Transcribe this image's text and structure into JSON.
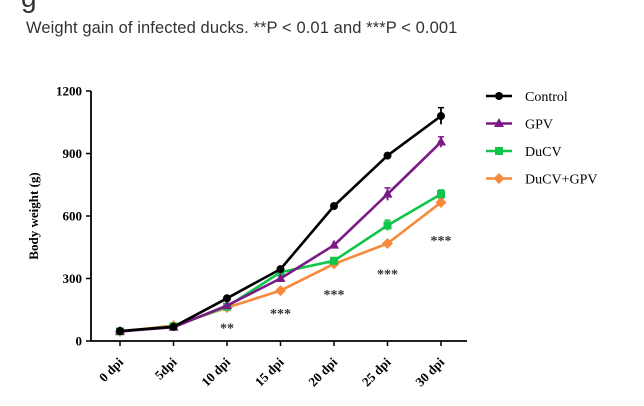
{
  "page": {
    "cut_heading": "g",
    "caption": "Weight gain of infected ducks. **P < 0.01 and ***P < 0.001"
  },
  "chart_data": {
    "type": "line",
    "title": "",
    "xlabel": "",
    "ylabel": "Body weight (g)",
    "ylim": [
      0,
      1200
    ],
    "yticks": [
      0,
      300,
      600,
      900,
      1200
    ],
    "categories": [
      "0 dpi",
      "5dpi",
      "10 dpi",
      "15 dpi",
      "20 dpi",
      "25 dpi",
      "30 dpi"
    ],
    "legend_position": "top-right",
    "series": [
      {
        "name": "Control",
        "color": "#000000",
        "marker": "circle",
        "values": [
          48,
          68,
          205,
          345,
          648,
          890,
          1080
        ],
        "errors": [
          0,
          0,
          0,
          0,
          0,
          10,
          40
        ]
      },
      {
        "name": "GPV",
        "color": "#7b1a86",
        "marker": "triangle",
        "values": [
          46,
          66,
          170,
          300,
          460,
          705,
          955
        ],
        "errors": [
          0,
          0,
          0,
          0,
          0,
          30,
          25
        ]
      },
      {
        "name": "DuCV",
        "color": "#11c44a",
        "marker": "square",
        "values": [
          46,
          70,
          165,
          330,
          385,
          555,
          705
        ],
        "errors": [
          0,
          0,
          0,
          0,
          15,
          25,
          20
        ]
      },
      {
        "name": "DuCV+GPV",
        "color": "#f7893b",
        "marker": "diamond",
        "values": [
          45,
          74,
          160,
          242,
          370,
          468,
          665
        ],
        "errors": [
          0,
          0,
          0,
          0,
          0,
          0,
          20
        ]
      }
    ],
    "annotations": [
      {
        "category": "10 dpi",
        "text": "**",
        "y": 70
      },
      {
        "category": "15 dpi",
        "text": "***",
        "y": 140
      },
      {
        "category": "20 dpi",
        "text": "***",
        "y": 230
      },
      {
        "category": "25 dpi",
        "text": "***",
        "y": 330
      },
      {
        "category": "30 dpi",
        "text": "***",
        "y": 490
      }
    ]
  }
}
